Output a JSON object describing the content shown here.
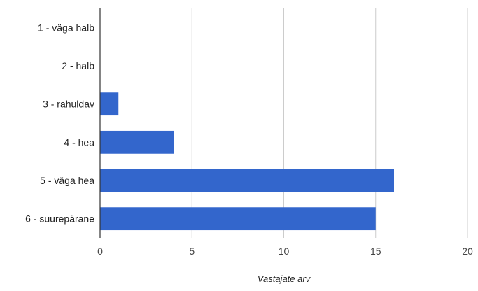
{
  "chart_data": {
    "type": "bar",
    "orientation": "horizontal",
    "categories": [
      "1 - väga halb",
      "2 - halb",
      "3 - rahuldav",
      "4 - hea",
      "5 - väga hea",
      "6 - suurepärane"
    ],
    "values": [
      0,
      0,
      1,
      4,
      16,
      15
    ],
    "title": "",
    "xlabel": "Vastajate arv",
    "ylabel": "",
    "xlim": [
      0,
      20
    ],
    "x_ticks": [
      "0",
      "5",
      "10",
      "15",
      "20"
    ],
    "grid": true,
    "bar_color": "#3366cc",
    "legend": "none"
  }
}
